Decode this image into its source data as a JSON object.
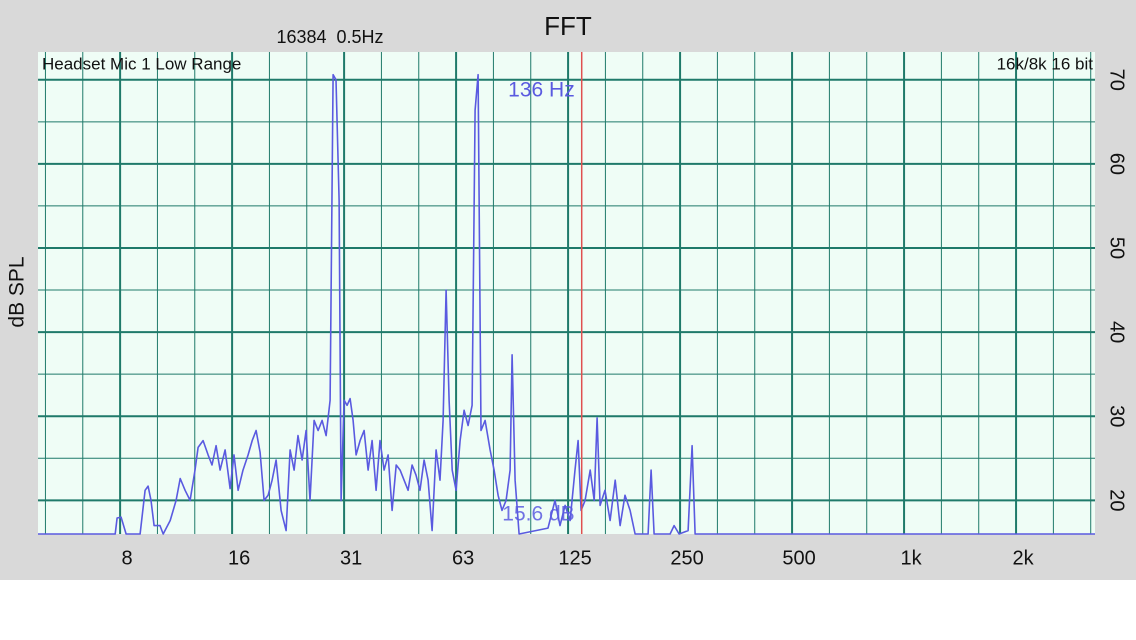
{
  "chart_data": {
    "type": "line",
    "title": "FFT",
    "subtitle": "16384  0.5Hz",
    "device_label": "Headset Mic 1 Low Range",
    "format_label": "16k/8k 16 bit",
    "ylabel": "dB SPL",
    "marker": {
      "x": 136,
      "color": "#e05050",
      "label": "136 Hz"
    },
    "floor_label": "15.6 dB",
    "color": "#5a5ae0",
    "xlog": true,
    "grid": true,
    "xlim": [
      4.7,
      3260
    ],
    "ylim": [
      16,
      73.3
    ],
    "xticks": [
      {
        "value": 7.8125,
        "label": "8"
      },
      {
        "value": 15.625,
        "label": "16"
      },
      {
        "value": 31.25,
        "label": "31"
      },
      {
        "value": 62.5,
        "label": "63"
      },
      125,
      250,
      500,
      {
        "value": 1000,
        "label": "1k"
      },
      {
        "value": 2000,
        "label": "2k"
      }
    ],
    "yticks": [
      20,
      30,
      40,
      50,
      60,
      70
    ],
    "x": [
      4.7,
      7.58,
      7.67,
      7.86,
      8.11,
      8.84,
      9.12,
      9.29,
      9.46,
      9.64,
      10.0,
      10.2,
      10.65,
      11.05,
      11.33,
      11.68,
      12.05,
      12.42,
      12.66,
      13.06,
      13.47,
      13.8,
      14.15,
      14.51,
      14.96,
      15.43,
      15.81,
      16.22,
      16.72,
      17.25,
      17.69,
      18.13,
      18.58,
      19.05,
      19.52,
      20.02,
      20.52,
      21.16,
      21.83,
      22.37,
      22.94,
      23.5,
      24.1,
      24.7,
      25.31,
      25.95,
      26.61,
      27.28,
      27.95,
      28.66,
      29.19,
      29.73,
      30.3,
      30.67,
      31.25,
      31.84,
      32.44,
      33.04,
      33.66,
      34.5,
      35.38,
      36.25,
      37.16,
      38.09,
      39.03,
      40.03,
      41.03,
      42.06,
      43.13,
      44.19,
      45.31,
      46.44,
      47.59,
      48.78,
      50.0,
      51.28,
      52.56,
      53.88,
      55.22,
      56.59,
      57.66,
      58.75,
      59.84,
      61.0,
      62.5,
      64.06,
      65.69,
      67.31,
      69.0,
      70.31,
      71.63,
      72.94,
      74.81,
      77.13,
      79.06,
      81.06,
      83.06,
      85.19,
      87.31,
      88.38,
      90.06,
      92.31,
      110.4,
      115.3,
      118.9,
      122.7,
      126.6,
      130.5,
      133.0,
      135.5,
      138.9,
      143.3,
      146.9,
      149.6,
      152.4,
      157.1,
      162.1,
      167.3,
      172.5,
      177.8,
      183.5,
      189.3,
      205.1,
      209.0,
      212.9,
      235.0,
      240.9,
      248.5,
      262.8,
      269.3,
      274.3,
      3260
    ],
    "values": [
      16,
      16,
      17.9,
      18.0,
      16,
      16,
      21.2,
      21.7,
      20,
      17.0,
      17.0,
      16,
      17.6,
      20,
      22.6,
      21.2,
      20,
      23.6,
      26.3,
      27.1,
      25.4,
      24.2,
      26.5,
      23.6,
      26.0,
      21.4,
      25.4,
      21.2,
      23.6,
      25.4,
      27.1,
      28.3,
      25.7,
      20,
      20.6,
      22.4,
      24.8,
      18.8,
      16.4,
      26.0,
      23.6,
      27.7,
      24.8,
      28.3,
      20,
      29.5,
      28.3,
      29.5,
      27.7,
      31.9,
      70.6,
      70.0,
      55.7,
      20,
      31.9,
      31.3,
      32.1,
      29.5,
      25.4,
      27.1,
      28.3,
      23.6,
      27.1,
      21.2,
      27.1,
      23.6,
      25.4,
      18.8,
      24.2,
      23.6,
      22.4,
      21.2,
      24.2,
      23.0,
      21.2,
      24.8,
      22.4,
      16.4,
      26.0,
      22.4,
      29.5,
      45.0,
      31.9,
      23.6,
      21.2,
      27.1,
      30.7,
      28.9,
      31.3,
      66.4,
      70.6,
      28.3,
      29.5,
      26.0,
      23.6,
      20.6,
      18.8,
      20,
      23.6,
      37.3,
      22.4,
      16,
      16.7,
      20,
      17.0,
      19.4,
      17.6,
      23.6,
      27.1,
      18.8,
      20,
      23.6,
      20,
      29.8,
      19.4,
      21.2,
      17.6,
      22.4,
      17.0,
      20.6,
      18.8,
      16,
      16,
      23.6,
      16,
      16,
      17.0,
      16,
      16.4,
      26.5,
      16,
      16
    ]
  }
}
